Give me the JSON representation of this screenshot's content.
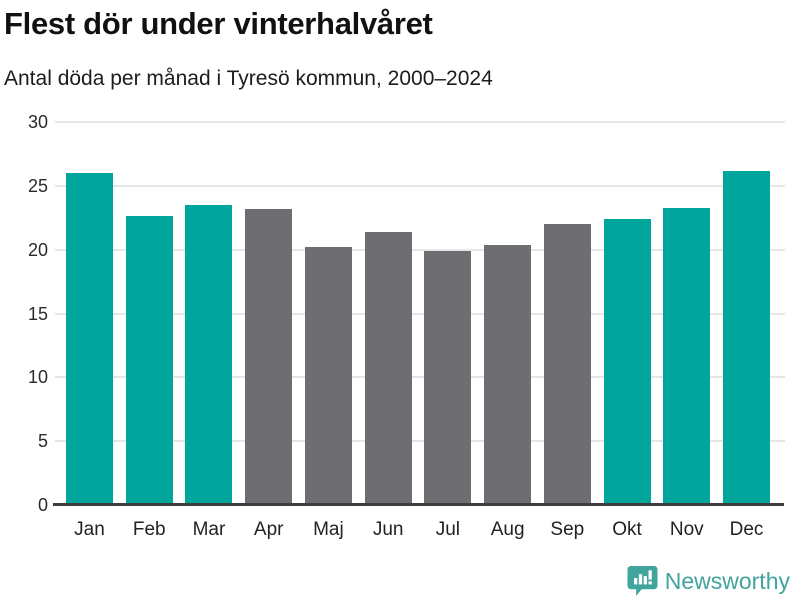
{
  "header": {
    "title": "Flest dör under vinterhalvåret",
    "subtitle": "Antal döda per månad i Tyresö kommun, 2000–2024"
  },
  "chart_data": {
    "type": "bar",
    "title": "Flest dör under vinterhalvåret",
    "subtitle": "Antal döda per månad i Tyresö kommun, 2000–2024",
    "categories": [
      "Jan",
      "Feb",
      "Mar",
      "Apr",
      "Maj",
      "Jun",
      "Jul",
      "Aug",
      "Sep",
      "Okt",
      "Nov",
      "Dec"
    ],
    "values": [
      26.0,
      22.6,
      23.5,
      23.2,
      20.2,
      21.4,
      19.9,
      20.4,
      22.0,
      22.4,
      23.3,
      26.2
    ],
    "highlighted": [
      true,
      true,
      true,
      false,
      false,
      false,
      false,
      false,
      false,
      true,
      true,
      true
    ],
    "colors": {
      "highlight": "#00a59c",
      "normal": "#6d6d72",
      "gridline": "#e6e6e6",
      "axis": "#3d3d3d"
    },
    "xlabel": "",
    "ylabel": "",
    "ylim": [
      0,
      30
    ],
    "yticks": [
      0,
      5,
      10,
      15,
      20,
      25,
      30
    ],
    "grid": true,
    "legend_position": "none"
  },
  "footer": {
    "brand": "Newsworthy",
    "brand_color": "#41a49d",
    "logo_icon": "newsworthy-bar-chart-speech-bubble"
  }
}
